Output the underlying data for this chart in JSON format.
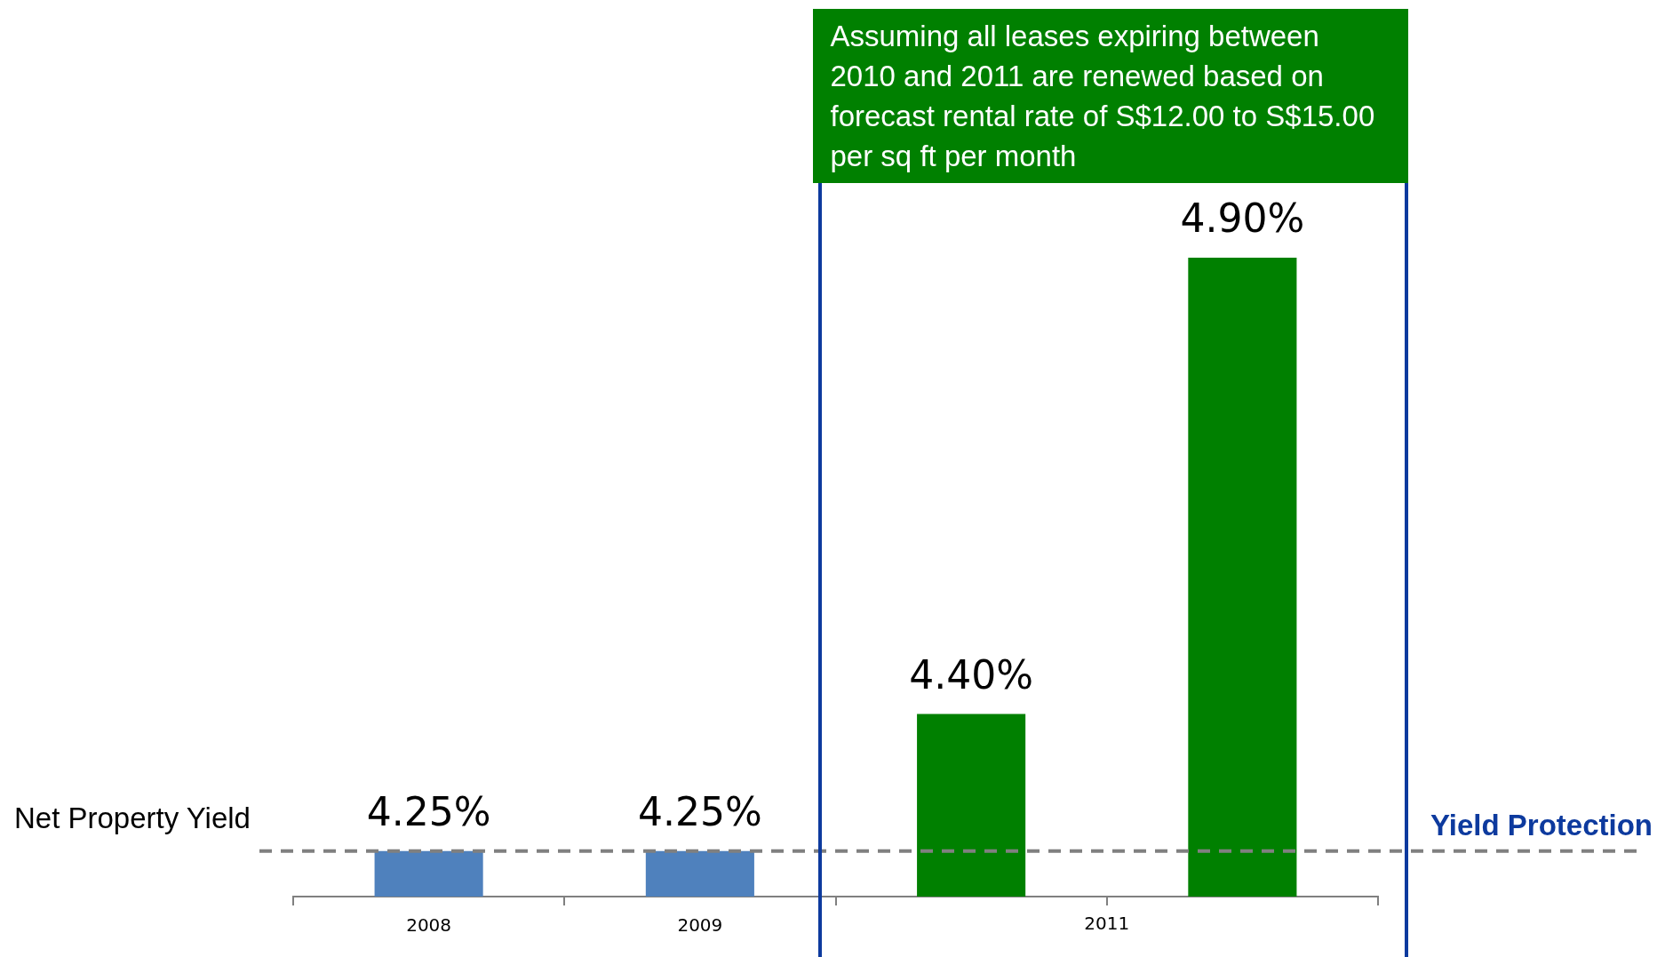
{
  "chart_data": {
    "type": "bar",
    "ylabel": "Net Property Yield",
    "categories": [
      "2008",
      "2009",
      null,
      null
    ],
    "values": [
      4.25,
      4.25,
      4.4,
      4.9
    ],
    "colors": [
      "#4f81bd",
      "#4f81bd",
      "#008000",
      "#008000"
    ],
    "value_labels": [
      "4.25%",
      "4.25%",
      "4.40%",
      "4.90%"
    ],
    "tick_labels": "x",
    "grid": false,
    "legend": false,
    "ref_lines": [
      {
        "axis": "y",
        "value": 4.25,
        "label": "Yield Protection",
        "color": "#808080",
        "line_style": "dashed"
      }
    ],
    "annotations": [
      "Assuming all leases expiring between 2010 and 2011 are renewed based on forecast rental rate of S$12.00 to S$15.00 per sq ft per month",
      "2011"
    ]
  }
}
